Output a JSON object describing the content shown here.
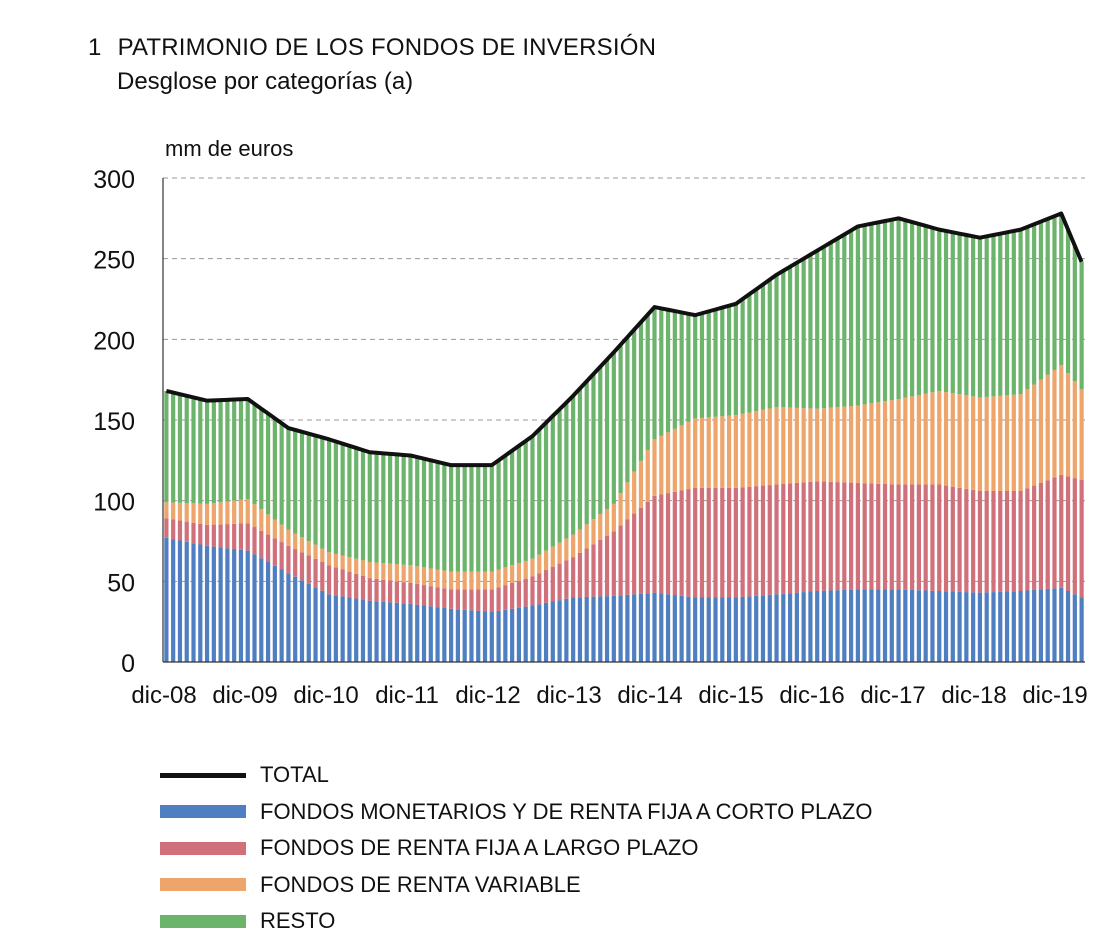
{
  "figure": {
    "number": "1",
    "title": "PATRIMONIO DE LOS FONDOS DE INVERSIÓN",
    "subtitle": "Desglose por categorías",
    "note": "(a)"
  },
  "chart_data": {
    "type": "bar",
    "stacked": true,
    "unit_label": "mm de euros",
    "ylim": [
      0,
      300
    ],
    "yticks": [
      0,
      50,
      100,
      150,
      200,
      250,
      300
    ],
    "grid": true,
    "legend_position": "bottom-left",
    "xtick_labels": [
      "dic-08",
      "dic-09",
      "dic-10",
      "dic-11",
      "dic-12",
      "dic-13",
      "dic-14",
      "dic-15",
      "dic-16",
      "dic-17",
      "dic-18",
      "dic-19"
    ],
    "x_start": "2008-12",
    "x_end": "2020-03",
    "frequency": "monthly",
    "colors": {
      "monetarios": "#4f7fc0",
      "renta_fija_lp": "#d0707a",
      "renta_variable": "#eea56c",
      "resto": "#6cb46c",
      "total": "#111111"
    },
    "anchors": {
      "months": [
        0,
        6,
        12,
        18,
        24,
        30,
        36,
        42,
        48,
        54,
        60,
        66,
        72,
        78,
        84,
        90,
        96,
        102,
        108,
        114,
        120,
        126,
        132,
        135
      ],
      "monetarios": [
        77,
        72,
        69,
        55,
        42,
        38,
        36,
        33,
        31,
        35,
        40,
        41,
        43,
        40,
        40,
        42,
        44,
        45,
        45,
        44,
        43,
        44,
        46,
        40
      ],
      "renta_fija_lp": [
        12,
        13,
        17,
        17,
        18,
        14,
        13,
        12,
        14,
        18,
        25,
        40,
        60,
        68,
        68,
        68,
        68,
        66,
        65,
        66,
        63,
        62,
        70,
        73
      ],
      "renta_variable": [
        10,
        13,
        15,
        10,
        8,
        10,
        11,
        11,
        11,
        11,
        14,
        17,
        35,
        43,
        45,
        48,
        45,
        48,
        53,
        58,
        58,
        60,
        68,
        56
      ],
      "total": [
        168,
        162,
        163,
        145,
        138,
        130,
        128,
        122,
        122,
        140,
        165,
        192,
        220,
        215,
        222,
        240,
        255,
        270,
        275,
        268,
        263,
        268,
        278,
        248
      ]
    }
  },
  "legend": [
    {
      "label": "TOTAL",
      "key": "total",
      "kind": "line"
    },
    {
      "label": "FONDOS MONETARIOS Y DE RENTA FIJA A CORTO PLAZO",
      "key": "monetarios",
      "kind": "bar"
    },
    {
      "label": "FONDOS DE RENTA FIJA A LARGO PLAZO",
      "key": "renta_fija_lp",
      "kind": "bar"
    },
    {
      "label": "FONDOS DE RENTA VARIABLE",
      "key": "renta_variable",
      "kind": "bar"
    },
    {
      "label": "RESTO",
      "key": "resto",
      "kind": "bar"
    }
  ]
}
